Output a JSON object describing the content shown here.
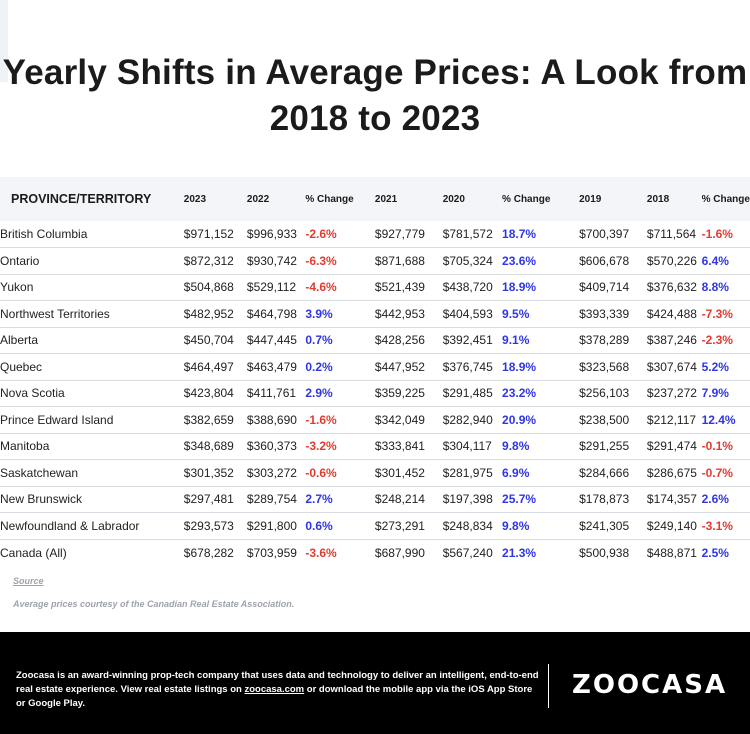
{
  "title": "Yearly Shifts in Average Prices: A Look from 2018 to 2023",
  "table": {
    "headers": [
      "PROVINCE/TERRITORY",
      "2023",
      "2022",
      "% Change",
      "2021",
      "2020",
      "% Change",
      "2019",
      "2018",
      "% Change"
    ],
    "rows": [
      [
        "British Columbia",
        "$971,152",
        "$996,933",
        "-2.6%",
        "$927,779",
        "$781,572",
        "18.7%",
        "$700,397",
        "$711,564",
        "-1.6%"
      ],
      [
        "Ontario",
        "$872,312",
        "$930,742",
        "-6.3%",
        "$871,688",
        "$705,324",
        "23.6%",
        "$606,678",
        "$570,226",
        "6.4%"
      ],
      [
        "Yukon",
        "$504,868",
        "$529,112",
        "-4.6%",
        "$521,439",
        "$438,720",
        "18.9%",
        "$409,714",
        "$376,632",
        "8.8%"
      ],
      [
        "Northwest Territories",
        "$482,952",
        "$464,798",
        "3.9%",
        "$442,953",
        "$404,593",
        "9.5%",
        "$393,339",
        "$424,488",
        "-7.3%"
      ],
      [
        "Alberta",
        "$450,704",
        "$447,445",
        "0.7%",
        "$428,256",
        "$392,451",
        "9.1%",
        "$378,289",
        "$387,246",
        "-2.3%"
      ],
      [
        "Quebec",
        "$464,497",
        "$463,479",
        "0.2%",
        "$447,952",
        "$376,745",
        "18.9%",
        "$323,568",
        "$307,674",
        "5.2%"
      ],
      [
        "Nova Scotia",
        "$423,804",
        "$411,761",
        "2.9%",
        "$359,225",
        "$291,485",
        "23.2%",
        "$256,103",
        "$237,272",
        "7.9%"
      ],
      [
        "Prince Edward Island",
        "$382,659",
        "$388,690",
        "-1.6%",
        "$342,049",
        "$282,940",
        "20.9%",
        "$238,500",
        "$212,117",
        "12.4%"
      ],
      [
        "Manitoba",
        "$348,689",
        "$360,373",
        "-3.2%",
        "$333,841",
        "$304,117",
        "9.8%",
        "$291,255",
        "$291,474",
        "-0.1%"
      ],
      [
        "Saskatchewan",
        "$301,352",
        "$303,272",
        "-0.6%",
        "$301,452",
        "$281,975",
        "6.9%",
        "$284,666",
        "$286,675",
        "-0.7%"
      ],
      [
        "New Brunswick",
        "$297,481",
        "$289,754",
        "2.7%",
        "$248,214",
        "$197,398",
        "25.7%",
        "$178,873",
        "$174,357",
        "2.6%"
      ],
      [
        "Newfoundland & Labrador",
        "$293,573",
        "$291,800",
        "0.6%",
        "$273,291",
        "$248,834",
        "9.8%",
        "$241,305",
        "$249,140",
        "-3.1%"
      ],
      [
        "Canada (All)",
        "$678,282",
        "$703,959",
        "-3.6%",
        "$687,990",
        "$567,240",
        "21.3%",
        "$500,938",
        "$488,871",
        "2.5%"
      ]
    ]
  },
  "source_label": "Source",
  "source_note": "Average prices courtesy of the Canadian Real Estate Association.",
  "footer": {
    "text_before": "Zoocasa is an award-winning prop-tech company that uses data and technology to deliver an intelligent, end-to-end real estate experience. View real estate listings on ",
    "link": "zoocasa.com",
    "text_after": " or download the mobile app via the iOS App Store or Google Play.",
    "logo": "ZOOCASA"
  },
  "colors": {
    "positive": "#2f36e6",
    "negative": "#e23b30",
    "header_bg": "#f3f5f8",
    "footer_bg": "#000000"
  }
}
